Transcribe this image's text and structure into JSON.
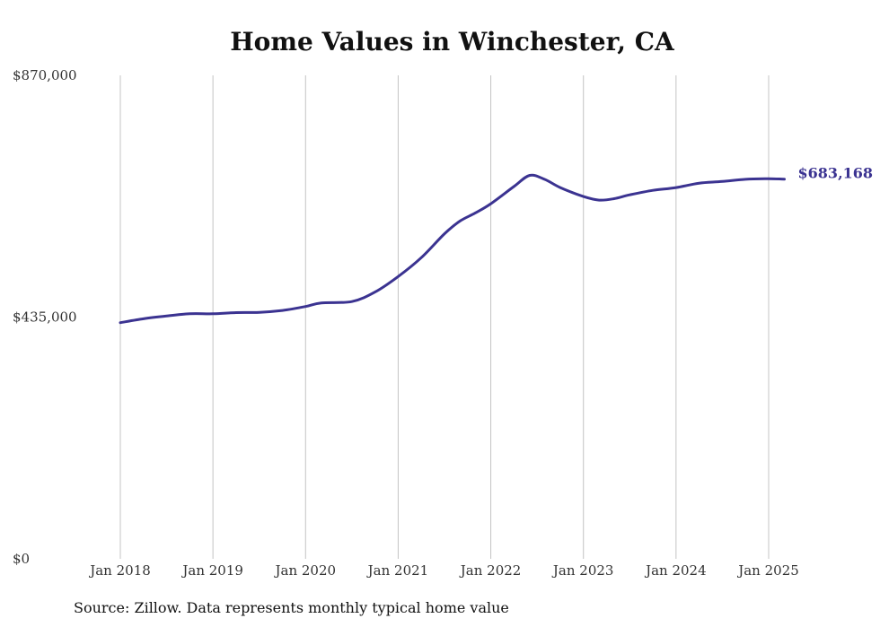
{
  "chart_data": {
    "type": "line",
    "title": "Home Values in Winchester, CA",
    "xlabel": "",
    "ylabel": "",
    "y_ticks": [
      {
        "value": 0,
        "label": "$0"
      },
      {
        "value": 435000,
        "label": "$435,000"
      },
      {
        "value": 870000,
        "label": "$870,000"
      }
    ],
    "ylim": [
      0,
      870000
    ],
    "x_ticks": [
      "Jan 2018",
      "Jan 2019",
      "Jan 2020",
      "Jan 2021",
      "Jan 2022",
      "Jan 2023",
      "Jan 2024",
      "Jan 2025"
    ],
    "x_start_year": 2018,
    "x_end_year": 2025.25,
    "grid": "vertical at each January",
    "line_color": "#3b3391",
    "end_label": "$683,168",
    "series": [
      {
        "x": [
          2018.0,
          2018.25,
          2018.5,
          2018.75,
          2019.0,
          2019.25,
          2019.5,
          2019.75,
          2020.0,
          2020.17,
          2020.5,
          2020.75,
          2021.0,
          2021.25,
          2021.5,
          2021.67,
          2021.83,
          2022.0,
          2022.25,
          2022.42,
          2022.58,
          2022.75,
          2023.0,
          2023.17,
          2023.33,
          2023.5,
          2023.75,
          2024.0,
          2024.25,
          2024.5,
          2024.75,
          2025.0,
          2025.17
        ],
        "y": [
          425000,
          432000,
          437000,
          441000,
          441000,
          443000,
          443500,
          447000,
          454000,
          460500,
          463000,
          480000,
          508000,
          542000,
          585000,
          608000,
          622000,
          639000,
          670000,
          690000,
          683000,
          668000,
          652000,
          645500,
          648000,
          655000,
          663000,
          668000,
          676000,
          679000,
          683000,
          684000,
          683168
        ]
      }
    ]
  },
  "footer": {
    "source": "Source: Zillow. Data represents monthly typical home value"
  }
}
